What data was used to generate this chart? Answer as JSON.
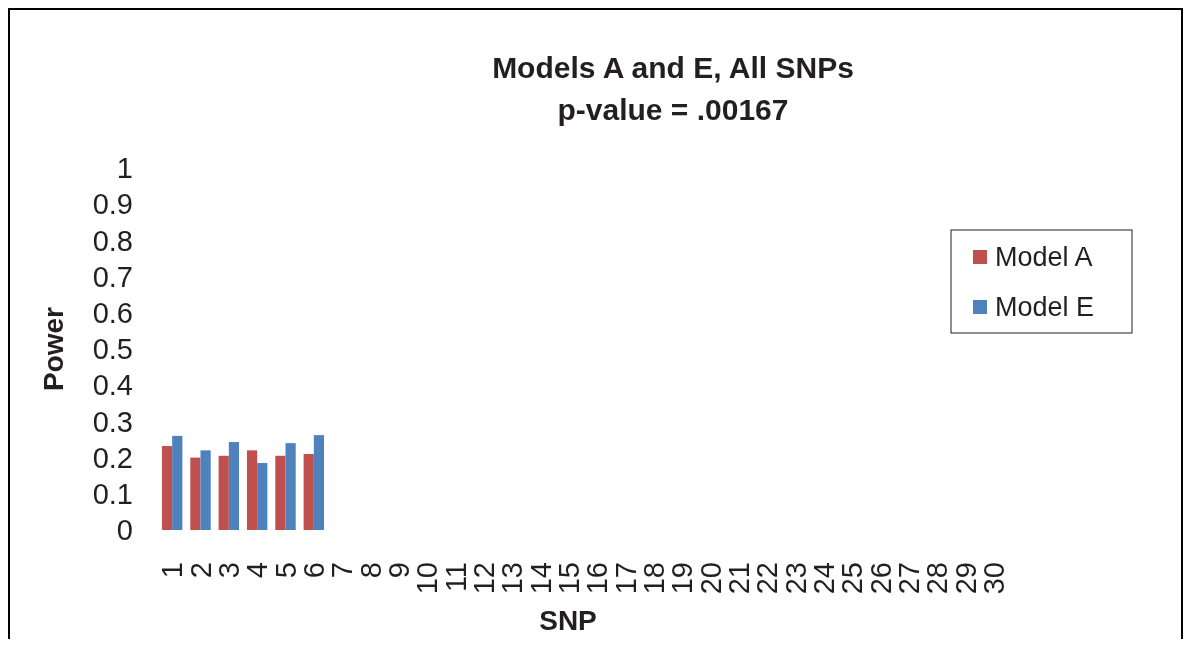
{
  "chart_data": {
    "type": "bar",
    "title": "Models A and E, All SNPs",
    "subtitle": "p-value = .00167",
    "xlabel": "SNP",
    "ylabel": "Power",
    "categories": [
      "1",
      "2",
      "3",
      "4",
      "5",
      "6",
      "7",
      "8",
      "9",
      "10",
      "11",
      "12",
      "13",
      "14",
      "15",
      "16",
      "17",
      "18",
      "19",
      "20",
      "21",
      "22",
      "23",
      "24",
      "25",
      "26",
      "27",
      "28",
      "29",
      "30"
    ],
    "series": [
      {
        "name": "Model A",
        "color": "#c0504d",
        "values": [
          0.232,
          0.2,
          0.205,
          0.22,
          0.205,
          0.21,
          null,
          null,
          null,
          null,
          null,
          null,
          null,
          null,
          null,
          null,
          null,
          null,
          null,
          null,
          null,
          null,
          null,
          null,
          null,
          null,
          null,
          null,
          null,
          null
        ]
      },
      {
        "name": "Model E",
        "color": "#4f81bd",
        "values": [
          0.26,
          0.22,
          0.243,
          0.185,
          0.24,
          0.262,
          null,
          null,
          null,
          null,
          null,
          null,
          null,
          null,
          null,
          null,
          null,
          null,
          null,
          null,
          null,
          null,
          null,
          null,
          null,
          null,
          null,
          null,
          null,
          null
        ]
      }
    ],
    "ylim": [
      0,
      1
    ],
    "yticks": [
      0,
      0.1,
      0.2,
      0.3,
      0.4,
      0.5,
      0.6,
      0.7,
      0.8,
      0.9,
      1
    ],
    "grid": false,
    "legend": "right"
  }
}
